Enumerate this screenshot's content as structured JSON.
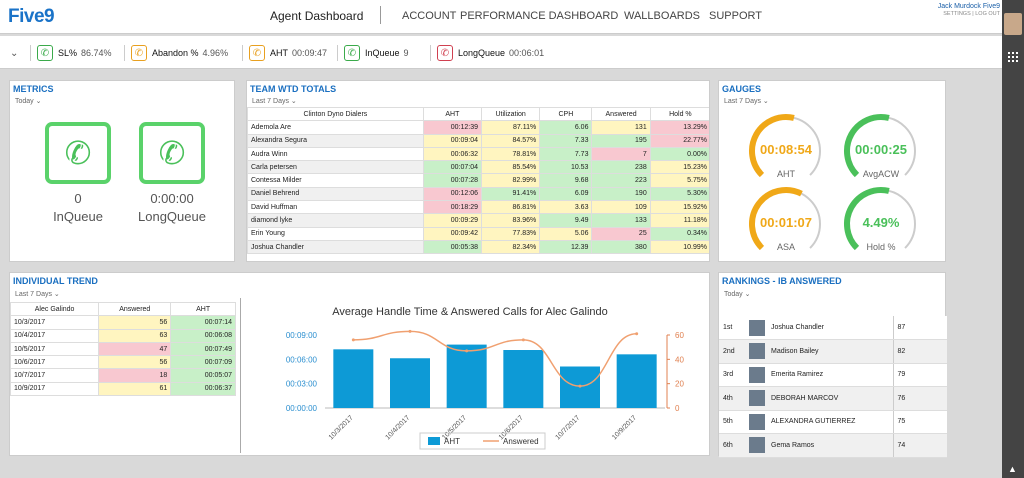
{
  "header": {
    "logo": "Five9",
    "title": "Agent Dashboard",
    "nav": [
      "ACCOUNT",
      "PERFORMANCE DASHBOARD",
      "WALLBOARDS",
      "SUPPORT"
    ],
    "user_name": "Jack Murdock Five9",
    "user_links": "SETTINGS | LOG OUT"
  },
  "status_bar": [
    {
      "label": "SL%",
      "value": "86.74%",
      "color": "#3aaa4a",
      "icon": "phone-check-icon"
    },
    {
      "label": "Abandon %",
      "value": "4.96%",
      "color": "#e8a020",
      "icon": "phone-abandon-icon"
    },
    {
      "label": "AHT",
      "value": "00:09:47",
      "color": "#e8a020",
      "icon": "phone-timer-icon"
    },
    {
      "label": "InQueue",
      "value": "9",
      "color": "#3aaa4a",
      "icon": "phone-inqueue-icon"
    },
    {
      "label": "LongQueue",
      "value": "00:06:01",
      "color": "#d04050",
      "icon": "phone-longqueue-icon"
    }
  ],
  "metrics": {
    "title": "METRICS",
    "period": "Today",
    "inqueue_value": "0",
    "inqueue_label": "InQueue",
    "longqueue_value": "0:00:00",
    "longqueue_label": "LongQueue"
  },
  "team": {
    "title": "TEAM WTD TOTALS",
    "period": "Last 7 Days",
    "headers": [
      "Clinton Dyno Dialers",
      "AHT",
      "Utilization",
      "CPH",
      "Answered",
      "Hold %"
    ],
    "rows": [
      [
        "Ademola Are",
        "00:12:39",
        "87.11%",
        "6.06",
        "131",
        "13.29%"
      ],
      [
        "Alexandra Segura",
        "00:09:04",
        "84.57%",
        "7.33",
        "195",
        "22.77%"
      ],
      [
        "Audra Winn",
        "00:06:32",
        "78.81%",
        "7.73",
        "7",
        "0.00%"
      ],
      [
        "Carla petersen",
        "00:07:04",
        "85.54%",
        "10.53",
        "238",
        "15.23%"
      ],
      [
        "Contessa Milder",
        "00:07:28",
        "82.99%",
        "9.68",
        "223",
        "5.75%"
      ],
      [
        "Daniel Behrend",
        "00:12:06",
        "91.41%",
        "6.09",
        "190",
        "5.30%"
      ],
      [
        "David Huffman",
        "00:18:29",
        "86.81%",
        "3.63",
        "109",
        "15.92%"
      ],
      [
        "diamond lyke",
        "00:09:29",
        "83.96%",
        "9.49",
        "133",
        "11.18%"
      ],
      [
        "Erin Young",
        "00:09:42",
        "77.83%",
        "5.06",
        "25",
        "0.34%"
      ],
      [
        "Joshua Chandler",
        "00:05:38",
        "82.34%",
        "12.39",
        "380",
        "10.99%"
      ]
    ],
    "colors": [
      [
        "p",
        "y",
        "g",
        "y",
        "p"
      ],
      [
        "y",
        "y",
        "g",
        "g",
        "p"
      ],
      [
        "y",
        "y",
        "g",
        "p",
        "g"
      ],
      [
        "g",
        "y",
        "g",
        "g",
        "y"
      ],
      [
        "g",
        "y",
        "g",
        "g",
        "y"
      ],
      [
        "p",
        "g",
        "g",
        "g",
        "g"
      ],
      [
        "p",
        "y",
        "y",
        "y",
        "y"
      ],
      [
        "y",
        "y",
        "g",
        "g",
        "y"
      ],
      [
        "y",
        "y",
        "y",
        "p",
        "g"
      ],
      [
        "g",
        "y",
        "g",
        "g",
        "y"
      ]
    ]
  },
  "gauges": {
    "title": "GAUGES",
    "period": "Last 7 Days",
    "items": [
      {
        "value": "00:08:54",
        "label": "AHT",
        "color": "#f0a818",
        "fraction": 0.55
      },
      {
        "value": "00:00:25",
        "label": "AvgACW",
        "color": "#4ac05a",
        "fraction": 0.55
      },
      {
        "value": "00:01:07",
        "label": "ASA",
        "color": "#f0a818",
        "fraction": 0.6
      },
      {
        "value": "4.49%",
        "label": "Hold %",
        "color": "#4ac05a",
        "fraction": 0.55
      }
    ]
  },
  "trend": {
    "title": "INDIVIDUAL TREND",
    "period": "Last 7 Days",
    "headers": [
      "Alec Galindo",
      "Answered",
      "AHT"
    ],
    "rows": [
      [
        "10/3/2017",
        "56",
        "00:07:14"
      ],
      [
        "10/4/2017",
        "63",
        "00:06:08"
      ],
      [
        "10/5/2017",
        "47",
        "00:07:49"
      ],
      [
        "10/6/2017",
        "56",
        "00:07:09"
      ],
      [
        "10/7/2017",
        "18",
        "00:05:07"
      ],
      [
        "10/9/2017",
        "61",
        "00:06:37"
      ]
    ],
    "colors": [
      [
        "y",
        "g"
      ],
      [
        "y",
        "g"
      ],
      [
        "p",
        "g"
      ],
      [
        "y",
        "g"
      ],
      [
        "p",
        "g"
      ],
      [
        "y",
        "g"
      ]
    ]
  },
  "chart_data": {
    "type": "bar",
    "title": "Average Handle Time & Answered Calls for Alec Galindo",
    "categories": [
      "10/3/2017",
      "10/4/2017",
      "10/5/2017",
      "10/6/2017",
      "10/7/2017",
      "10/9/2017"
    ],
    "series": [
      {
        "name": "AHT",
        "type": "bar",
        "values_seconds": [
          434,
          368,
          469,
          429,
          307,
          397
        ]
      },
      {
        "name": "Answered",
        "type": "line",
        "values": [
          56,
          63,
          47,
          56,
          18,
          61
        ]
      }
    ],
    "y_left_ticks": [
      "00:00:00",
      "00:03:00",
      "00:06:00",
      "00:09:00"
    ],
    "y_left_max_seconds": 540,
    "y_right_ticks": [
      "0",
      "20",
      "40",
      "60"
    ],
    "y_right_max": 60,
    "legend": [
      "AHT",
      "Answered"
    ],
    "bar_color": "#0d9ad6",
    "line_color": "#f0a070"
  },
  "rankings": {
    "title": "RANKINGS - IB ANSWERED",
    "period": "Today",
    "rows": [
      [
        "1st",
        "Joshua Chandler",
        "87"
      ],
      [
        "2nd",
        "Madison Bailey",
        "82"
      ],
      [
        "3rd",
        "Emerita Ramirez",
        "79"
      ],
      [
        "4th",
        "DEBORAH MARCOV",
        "76"
      ],
      [
        "5th",
        "ALEXANDRA GUTIERREZ",
        "75"
      ],
      [
        "6th",
        "Gema Ramos",
        "74"
      ]
    ]
  }
}
